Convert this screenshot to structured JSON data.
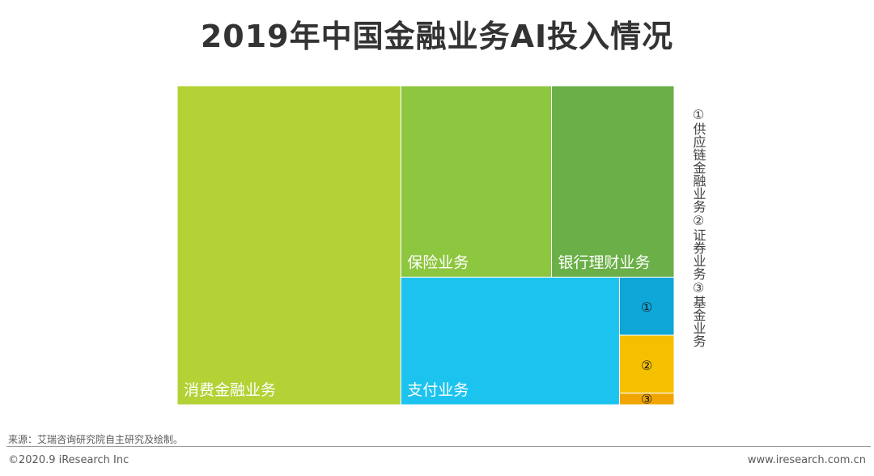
{
  "title": "2019年中国金融业务AI投入情况",
  "chart_data": {
    "type": "treemap",
    "items": [
      {
        "label": "消费金融业务",
        "value": 45.0,
        "color": "#b2d235"
      },
      {
        "label": "保险业务",
        "value": 18.2,
        "color": "#8dc63f"
      },
      {
        "label": "银行理财业务",
        "value": 14.8,
        "color": "#6aaf47"
      },
      {
        "label": "支付业务",
        "value": 17.6,
        "color": "#1cc3ef"
      },
      {
        "label": "①",
        "value": 2.0,
        "color": "#0fa6d8"
      },
      {
        "label": "②",
        "value": 2.0,
        "color": "#f5c000"
      },
      {
        "label": "③",
        "value": 0.4,
        "color": "#f0a500"
      }
    ]
  },
  "legend": [
    {
      "num": "①",
      "label": "供应链金融业务"
    },
    {
      "num": "②",
      "label": "证券业务"
    },
    {
      "num": "③",
      "label": "基金业务"
    }
  ],
  "footer": {
    "source": "来源：艾瑞咨询研究院自主研究及绘制。",
    "copyright": "©2020.9 iResearch Inc",
    "site": "www.iresearch.com.cn"
  }
}
